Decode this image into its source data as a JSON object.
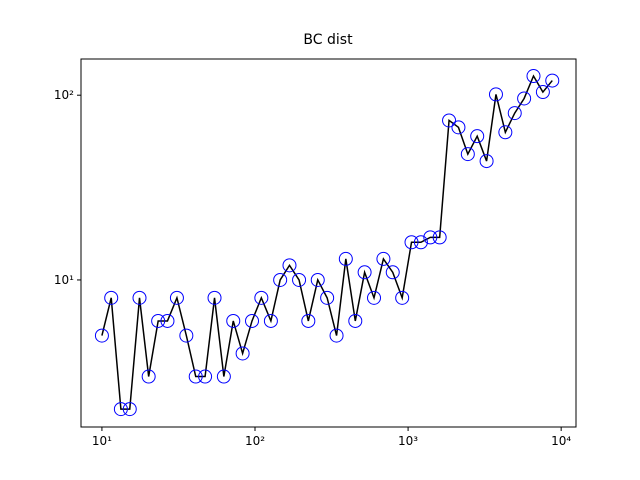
{
  "chart_data": {
    "type": "line",
    "title": "BC dist",
    "xscale": "log",
    "yscale": "log",
    "x": [
      10,
      11.5,
      13.3,
      15.2,
      17.6,
      20.2,
      23.3,
      26.8,
      30.9,
      35.6,
      41.0,
      47.2,
      54.4,
      62.6,
      72.1,
      83.0,
      95.6,
      110,
      127,
      146,
      168,
      194,
      223,
      257,
      296,
      341,
      392,
      452,
      520,
      599,
      690,
      794,
      915,
      1053,
      1213,
      1397,
      1608,
      1852,
      2133,
      2456,
      2828,
      3257,
      3751,
      4319,
      4974,
      5728,
      6596,
      7596,
      8748
    ],
    "series": [
      {
        "color": "#000000",
        "marker_color": "#0000ff",
        "values": [
          5,
          8,
          2,
          2,
          8,
          3,
          6,
          6,
          8,
          5,
          3,
          3,
          8,
          3,
          6,
          4,
          6,
          8,
          6,
          10,
          12,
          10,
          6,
          10,
          8,
          5,
          13,
          6,
          11,
          8,
          13,
          11,
          8,
          16,
          16,
          17,
          17,
          73,
          67,
          48,
          60,
          44,
          101,
          63,
          80,
          96,
          127,
          104,
          120
        ]
      }
    ],
    "xlim": [
      7.3,
      12500
    ],
    "ylim": [
      1.6,
      157
    ],
    "xticks": [
      {
        "value": 10,
        "label": "10¹"
      },
      {
        "value": 100,
        "label": "10²"
      },
      {
        "value": 1000,
        "label": "10³"
      },
      {
        "value": 10000,
        "label": "10⁴"
      }
    ],
    "yticks": [
      {
        "value": 10,
        "label": "10¹"
      },
      {
        "value": 100,
        "label": "10²"
      }
    ]
  }
}
